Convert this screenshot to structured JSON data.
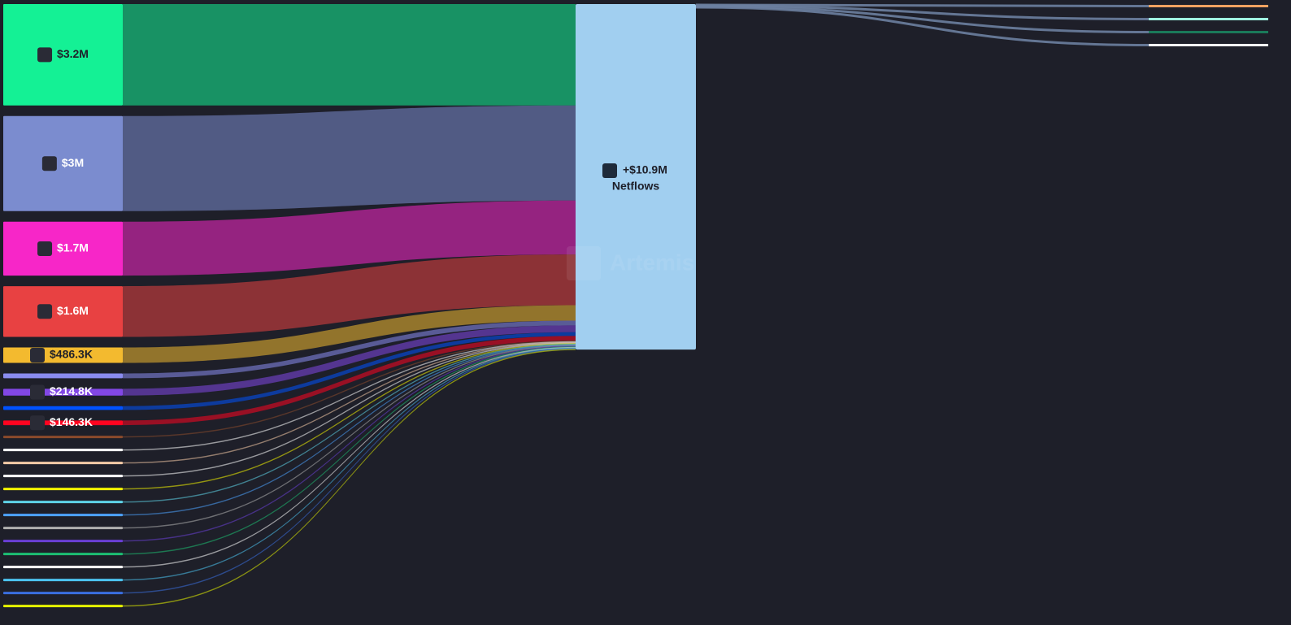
{
  "chart_data": {
    "type": "sankey",
    "watermark": "Artemis",
    "target": {
      "label": "Netflows",
      "value": 10900000,
      "value_label": "+$10.9M",
      "color": "#a1cff0"
    },
    "sources": {
      "categories": [
        null,
        null,
        null,
        null,
        null,
        null,
        null,
        null,
        null,
        null,
        null,
        null,
        null,
        null,
        null,
        null,
        null,
        null,
        null,
        null,
        null,
        null,
        null
      ],
      "values": [
        3200000,
        3000000,
        1700000,
        1600000,
        486300,
        150000,
        214800,
        120000,
        146300,
        20000,
        20000,
        20000,
        20000,
        20000,
        20000,
        20000,
        20000,
        20000,
        20000,
        20000,
        20000,
        20000,
        20000
      ],
      "value_labels": [
        "$3.2M",
        "$3M",
        "$1.7M",
        "$1.6M",
        "$486.3K",
        null,
        "$214.8K",
        null,
        "$146.3K",
        null,
        null,
        null,
        null,
        null,
        null,
        null,
        null,
        null,
        null,
        null,
        null,
        null,
        null
      ],
      "colors": [
        "#14f195",
        "#7b8ccf",
        "#f726c8",
        "#e84142",
        "#f3ba2f",
        "#8a8cf0",
        "#8247e5",
        "#0052ff",
        "#ff0420",
        "#8b4a2b",
        "#ffffff",
        "#f5cba7",
        "#ffffff",
        "#f5f500",
        "#5fd3e8",
        "#4da3ff",
        "#b0b0b0",
        "#6a3fd6",
        "#1dbf73",
        "#ffffff",
        "#4cc3f0",
        "#3a6fe0",
        "#e6f200"
      ]
    },
    "outflows": {
      "categories": [
        null,
        null,
        null,
        null
      ],
      "values": [
        20000,
        20000,
        20000,
        20000
      ],
      "colors": [
        "#f4a261",
        "#9ff0e0",
        "#1a7a5a",
        "#ffffff"
      ],
      "link_color": "#6b7fa0"
    }
  }
}
